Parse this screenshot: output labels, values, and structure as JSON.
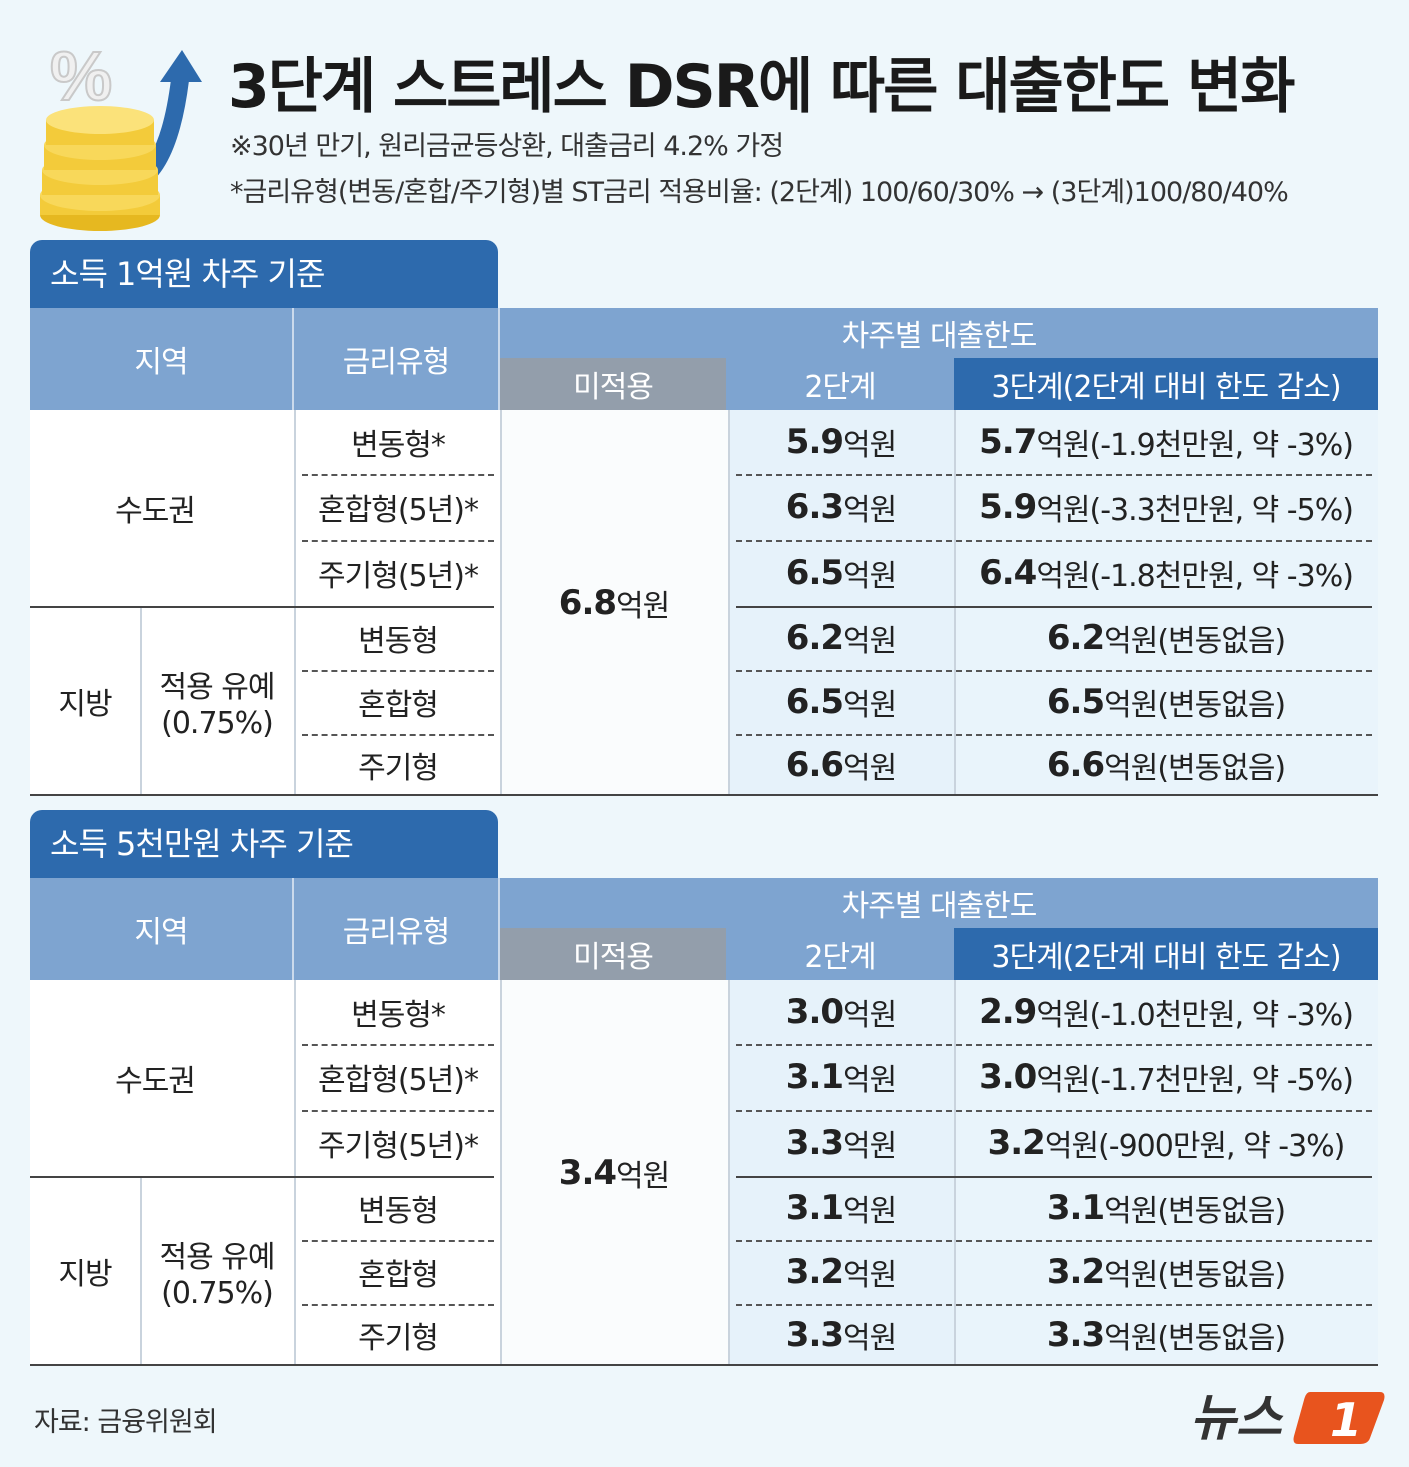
{
  "header": {
    "title": "3단계 스트레스 DSR에 따른 대출한도 변화",
    "note1": "※30년 만기, 원리금균등상환, 대출금리 4.2% 가정",
    "note2": "*금리유형(변동/혼합/주기형)별 ST금리 적용비율: (2단계) 100/60/30% → (3단계)100/80/40%",
    "icon": "coins-percent-arrow-icon",
    "icon_symbol": "%"
  },
  "columns": {
    "region": "지역",
    "rate_type": "금리유형",
    "limit_by_borrower": "차주별 대출한도",
    "not_applied": "미적용",
    "stage2": "2단계",
    "stage3": "3단계(2단계 대비 한도 감소)"
  },
  "sections": [
    {
      "title": "소득 1억원 차주 기준",
      "metro_label": "수도권",
      "local_label": "지방",
      "local_sub": "적용 유예",
      "local_sub2": "(0.75%)",
      "not_applied_value": "6.8",
      "unit": "억원",
      "rows": [
        {
          "type": "변동형*",
          "s2": "5.9",
          "s3": "5.7",
          "s3_note": "(-1.9천만원, 약 -3%)"
        },
        {
          "type": "혼합형(5년)*",
          "s2": "6.3",
          "s3": "5.9",
          "s3_note": "(-3.3천만원, 약 -5%)"
        },
        {
          "type": "주기형(5년)*",
          "s2": "6.5",
          "s3": "6.4",
          "s3_note": "(-1.8천만원, 약 -3%)"
        },
        {
          "type": "변동형",
          "s2": "6.2",
          "s3": "6.2",
          "s3_note": "(변동없음)"
        },
        {
          "type": "혼합형",
          "s2": "6.5",
          "s3": "6.5",
          "s3_note": "(변동없음)"
        },
        {
          "type": "주기형",
          "s2": "6.6",
          "s3": "6.6",
          "s3_note": "(변동없음)"
        }
      ]
    },
    {
      "title": "소득 5천만원 차주 기준",
      "metro_label": "수도권",
      "local_label": "지방",
      "local_sub": "적용 유예",
      "local_sub2": "(0.75%)",
      "not_applied_value": "3.4",
      "unit": "억원",
      "rows": [
        {
          "type": "변동형*",
          "s2": "3.0",
          "s3": "2.9",
          "s3_note": "(-1.0천만원, 약 -3%)"
        },
        {
          "type": "혼합형(5년)*",
          "s2": "3.1",
          "s3": "3.0",
          "s3_note": "(-1.7천만원, 약 -5%)"
        },
        {
          "type": "주기형(5년)*",
          "s2": "3.3",
          "s3": "3.2",
          "s3_note": "(-900만원, 약 -3%)"
        },
        {
          "type": "변동형",
          "s2": "3.1",
          "s3": "3.1",
          "s3_note": "(변동없음)"
        },
        {
          "type": "혼합형",
          "s2": "3.2",
          "s3": "3.2",
          "s3_note": "(변동없음)"
        },
        {
          "type": "주기형",
          "s2": "3.3",
          "s3": "3.3",
          "s3_note": "(변동없음)"
        }
      ]
    }
  ],
  "footer": {
    "source": "자료: 금융위원회",
    "logo_text": "뉴스",
    "logo_num": "1",
    "logo_color": "#e8541e"
  }
}
